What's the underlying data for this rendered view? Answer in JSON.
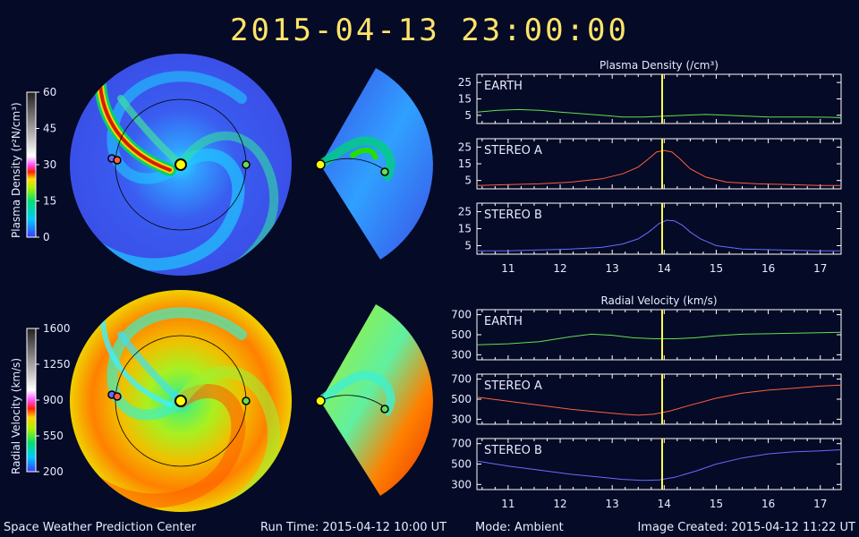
{
  "timestamp": "2015-04-13 23:00:00",
  "footer": {
    "org": "Space Weather Prediction Center",
    "run_time": "Run Time: 2015-04-12 10:00 UT",
    "mode": "Mode: Ambient",
    "image_created": "Image Created: 2015-04-12 11:22 UT"
  },
  "colorbars": [
    {
      "label": "Plasma Density (r²N/cm³)",
      "ticks": [
        "60",
        "45",
        "30",
        "15",
        "0"
      ]
    },
    {
      "label": "Radial Velocity (km/s)",
      "ticks": [
        "1600",
        "1250",
        "900",
        "550",
        "200"
      ]
    }
  ],
  "colors": {
    "background": "#050a26",
    "earth": "#60e050",
    "stereo_a": "#ff6040",
    "stereo_b": "#6a6aff",
    "time_marker": "#ffff50",
    "sun": "#ffff00"
  },
  "chart_data": [
    {
      "type": "line",
      "title": "Plasma Density (/cm³)",
      "x_ticks": [
        "11",
        "12",
        "13",
        "14",
        "15",
        "16",
        "17"
      ],
      "xlim": [
        10.4,
        17.4
      ],
      "time_marker": 13.96,
      "panels": [
        {
          "name": "EARTH",
          "color_key": "earth",
          "ylim": [
            0,
            30
          ],
          "y_ticks": [
            25,
            15,
            5
          ],
          "x": [
            10.4,
            10.8,
            11.2,
            11.6,
            12.0,
            12.4,
            12.8,
            13.2,
            13.6,
            14.0,
            14.4,
            14.8,
            15.2,
            15.6,
            16.0,
            16.4,
            16.8,
            17.2,
            17.4
          ],
          "y": [
            7,
            8,
            8.5,
            8,
            7,
            6,
            5,
            4,
            4,
            4.5,
            5,
            5.5,
            5,
            4.5,
            4,
            4,
            4,
            3.8,
            3.5
          ]
        },
        {
          "name": "STEREO A",
          "color_key": "stereo_a",
          "ylim": [
            0,
            30
          ],
          "y_ticks": [
            25,
            15,
            5
          ],
          "x": [
            10.4,
            11.0,
            11.6,
            12.2,
            12.8,
            13.2,
            13.5,
            13.7,
            13.85,
            14.0,
            14.15,
            14.3,
            14.5,
            14.8,
            15.2,
            15.8,
            16.4,
            17.0,
            17.4
          ],
          "y": [
            2,
            2.5,
            3,
            4,
            6,
            9,
            13,
            18,
            22,
            23,
            22,
            18,
            12,
            7,
            4,
            3,
            2.5,
            2,
            2
          ]
        },
        {
          "name": "STEREO B",
          "color_key": "stereo_b",
          "ylim": [
            0,
            30
          ],
          "y_ticks": [
            25,
            15,
            5
          ],
          "x": [
            10.4,
            11.0,
            11.6,
            12.2,
            12.8,
            13.2,
            13.5,
            13.7,
            13.9,
            14.05,
            14.2,
            14.35,
            14.5,
            14.7,
            15.0,
            15.5,
            16.2,
            17.0,
            17.4
          ],
          "y": [
            2,
            2,
            2.5,
            3,
            4,
            6,
            9,
            13,
            18,
            20,
            19.5,
            17,
            13,
            9,
            5,
            3,
            2.5,
            2,
            2
          ]
        }
      ]
    },
    {
      "type": "line",
      "title": "Radial Velocity (km/s)",
      "x_ticks": [
        "11",
        "12",
        "13",
        "14",
        "15",
        "16",
        "17"
      ],
      "xlim": [
        10.4,
        17.4
      ],
      "time_marker": 13.96,
      "panels": [
        {
          "name": "EARTH",
          "color_key": "earth",
          "ylim": [
            250,
            750
          ],
          "y_ticks": [
            700,
            500,
            300
          ],
          "x": [
            10.4,
            11.0,
            11.6,
            12.2,
            12.6,
            13.0,
            13.4,
            13.8,
            14.2,
            14.6,
            15.0,
            15.5,
            16.0,
            16.5,
            17.0,
            17.4
          ],
          "y": [
            400,
            410,
            430,
            480,
            505,
            495,
            470,
            460,
            460,
            470,
            490,
            505,
            510,
            515,
            520,
            525
          ]
        },
        {
          "name": "STEREO A",
          "color_key": "stereo_a",
          "ylim": [
            250,
            750
          ],
          "y_ticks": [
            700,
            500,
            300
          ],
          "x": [
            10.4,
            11.0,
            11.6,
            12.2,
            12.8,
            13.2,
            13.5,
            13.8,
            14.1,
            14.5,
            15.0,
            15.5,
            16.0,
            16.5,
            17.0,
            17.4
          ],
          "y": [
            520,
            480,
            440,
            400,
            370,
            350,
            340,
            350,
            380,
            440,
            510,
            560,
            590,
            610,
            630,
            640
          ]
        },
        {
          "name": "STEREO B",
          "color_key": "stereo_b",
          "ylim": [
            250,
            750
          ],
          "y_ticks": [
            700,
            500,
            300
          ],
          "x": [
            10.4,
            11.0,
            11.6,
            12.2,
            12.8,
            13.2,
            13.6,
            13.9,
            14.2,
            14.6,
            15.0,
            15.5,
            16.0,
            16.5,
            17.0,
            17.4
          ],
          "y": [
            530,
            480,
            440,
            400,
            370,
            350,
            340,
            345,
            370,
            430,
            500,
            560,
            600,
            620,
            630,
            640
          ]
        }
      ]
    }
  ]
}
